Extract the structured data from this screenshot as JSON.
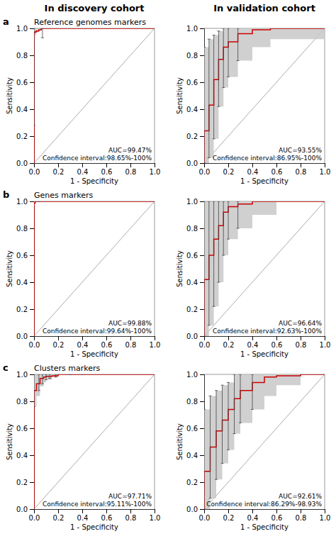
{
  "chart_data": [
    {
      "type": "step",
      "title": "In discovery cohort",
      "subtitle": "Reference genomes markers",
      "panel_label": "a",
      "x_label": "1 - Specificity",
      "y_label": "Sensitivity",
      "xlim": [
        0,
        1
      ],
      "ylim": [
        0,
        1
      ],
      "xticks": [
        {
          "value": 0,
          "label": "0.0"
        },
        0.2,
        0.4,
        0.6,
        0.8,
        {
          "value": 1,
          "label": "1.0"
        }
      ],
      "yticks": [
        {
          "value": 0,
          "label": "0.0"
        },
        0.2,
        0.4,
        0.6,
        0.8,
        {
          "value": 1,
          "label": "1.0"
        }
      ],
      "series": [
        {
          "type": "line",
          "color": "#aaaaaa",
          "x": [
            0,
            1
          ],
          "values": [
            0,
            1
          ]
        },
        {
          "type": "band",
          "color": "#c8c8c8",
          "x": [
            0.0,
            0.0,
            0.0,
            0.01,
            0.02,
            0.04,
            0.06,
            0.1,
            0.2,
            0.4,
            0.6,
            0.8,
            1.0
          ],
          "lower": [
            0.0,
            0.28,
            0.93,
            0.95,
            0.97,
            0.98,
            1.0,
            1.0,
            1.0,
            1.0,
            1.0,
            1.0,
            1.0
          ],
          "upper": [
            0.0,
            1.0,
            1.0,
            1.0,
            1.0,
            1.0,
            1.0,
            1.0,
            1.0,
            1.0,
            1.0,
            1.0,
            1.0
          ]
        },
        {
          "type": "step",
          "color": "#cc0000",
          "x": [
            0.0,
            0.0,
            0.0,
            0.01,
            0.02,
            0.04,
            0.06,
            0.1,
            0.2,
            0.4,
            0.6,
            0.8,
            1.0
          ],
          "values": [
            0.0,
            0.64,
            0.97,
            0.975,
            0.98,
            0.99,
            1.0,
            1.0,
            1.0,
            1.0,
            1.0,
            1.0,
            1.0
          ]
        },
        {
          "type": "error_bar",
          "color": "#444444",
          "x": [
            0.0,
            0.07
          ],
          "values": [
            0.64,
            0.975
          ],
          "upper": [
            1.0,
            1.0
          ],
          "lower": [
            0.28,
            0.93
          ]
        }
      ],
      "annotation": "AUC=99.47%\nConfidence interval:98.65%-100%"
    },
    {
      "type": "step",
      "title": "In validation cohort",
      "x_label": "1 - Specificity",
      "y_label": "Sensitivity",
      "xlim": [
        0,
        1
      ],
      "ylim": [
        0,
        1
      ],
      "xticks": [
        {
          "value": 0,
          "label": "0.0"
        },
        0.2,
        0.4,
        0.6,
        0.8,
        {
          "value": 1,
          "label": "1.0"
        }
      ],
      "yticks": [
        {
          "value": 0,
          "label": "0.0"
        },
        0.2,
        0.4,
        0.6,
        0.8,
        {
          "value": 1,
          "label": "1.0"
        }
      ],
      "series": [
        {
          "type": "line",
          "color": "#aaaaaa",
          "x": [
            0,
            1
          ],
          "values": [
            0,
            1
          ]
        },
        {
          "type": "band",
          "color": "#c8c8c8",
          "x": [
            0.0,
            0.0,
            0.04,
            0.08,
            0.12,
            0.16,
            0.2,
            0.28,
            0.4,
            0.55,
            1.0
          ],
          "lower": [
            0.0,
            0.0,
            0.04,
            0.18,
            0.42,
            0.56,
            0.64,
            0.76,
            0.86,
            0.92,
            1.0
          ],
          "upper": [
            0.0,
            0.86,
            0.92,
            0.95,
            0.98,
            1.0,
            1.0,
            1.0,
            1.0,
            1.0,
            1.0
          ]
        },
        {
          "type": "step",
          "color": "#cc0000",
          "x": [
            0.0,
            0.0,
            0.04,
            0.08,
            0.12,
            0.16,
            0.2,
            0.28,
            0.4,
            0.55,
            1.0
          ],
          "values": [
            0.0,
            0.24,
            0.43,
            0.62,
            0.77,
            0.86,
            0.9,
            0.96,
            0.99,
            1.0,
            1.0
          ]
        },
        {
          "type": "error_bar",
          "color": "#444444",
          "x": [
            0.0,
            0.04,
            0.08,
            0.12,
            0.16,
            0.2,
            0.28
          ],
          "values": [
            0.24,
            0.43,
            0.62,
            0.77,
            0.86,
            0.9,
            0.96
          ],
          "upper": [
            0.86,
            0.92,
            0.95,
            0.98,
            1.0,
            1.0,
            1.0
          ],
          "lower": [
            0.0,
            0.04,
            0.18,
            0.42,
            0.56,
            0.64,
            0.76
          ]
        }
      ],
      "annotation": "AUC=93.55%\nConfidence interval:86.95%-100%"
    },
    {
      "type": "step",
      "subtitle": "Genes markers",
      "panel_label": "b",
      "x_label": "1 - Specificity",
      "y_label": "Sensitivity",
      "xlim": [
        0,
        1
      ],
      "ylim": [
        0,
        1
      ],
      "xticks": [
        {
          "value": 0,
          "label": "0.0"
        },
        0.2,
        0.4,
        0.6,
        0.8,
        {
          "value": 1,
          "label": "1.0"
        }
      ],
      "yticks": [
        {
          "value": 0,
          "label": "0.0"
        },
        0.2,
        0.4,
        0.6,
        0.8,
        {
          "value": 1,
          "label": "1.0"
        }
      ],
      "series": [
        {
          "type": "line",
          "color": "#aaaaaa",
          "x": [
            0,
            1
          ],
          "values": [
            0,
            1
          ]
        },
        {
          "type": "band",
          "color": "#c8c8c8",
          "x": [
            0.0,
            0.0,
            0.005,
            0.01,
            0.02,
            0.04,
            0.1,
            0.2,
            0.4,
            0.6,
            0.8,
            1.0
          ],
          "lower": [
            0.0,
            0.97,
            0.98,
            1.0,
            1.0,
            1.0,
            1.0,
            1.0,
            1.0,
            1.0,
            1.0,
            1.0
          ],
          "upper": [
            0.0,
            1.0,
            1.0,
            1.0,
            1.0,
            1.0,
            1.0,
            1.0,
            1.0,
            1.0,
            1.0,
            1.0
          ]
        },
        {
          "type": "step",
          "color": "#cc0000",
          "x": [
            0.0,
            0.0,
            0.005,
            0.01,
            0.02,
            0.04,
            0.1,
            0.2,
            0.4,
            0.6,
            0.8,
            1.0
          ],
          "values": [
            0.0,
            0.985,
            0.99,
            1.0,
            1.0,
            1.0,
            1.0,
            1.0,
            1.0,
            1.0,
            1.0,
            1.0
          ]
        },
        {
          "type": "error_bar",
          "color": "#444444",
          "x": [
            0.04
          ],
          "values": [
            1.0
          ],
          "upper": [
            1.0
          ],
          "lower": [
            1.0
          ]
        }
      ],
      "annotation": "AUC=99.88%\nConfidence interval:99.64%-100%"
    },
    {
      "type": "step",
      "x_label": "1 - Specificity",
      "y_label": "Sensitivity",
      "xlim": [
        0,
        1
      ],
      "ylim": [
        0,
        1
      ],
      "xticks": [
        {
          "value": 0,
          "label": "0.0"
        },
        0.2,
        0.4,
        0.6,
        0.8,
        {
          "value": 1,
          "label": "1.0"
        }
      ],
      "yticks": [
        {
          "value": 0,
          "label": "0.0"
        },
        0.2,
        0.4,
        0.6,
        0.8,
        {
          "value": 1,
          "label": "1.0"
        }
      ],
      "series": [
        {
          "type": "line",
          "color": "#aaaaaa",
          "x": [
            0,
            1
          ],
          "values": [
            0,
            1
          ]
        },
        {
          "type": "band",
          "color": "#c8c8c8",
          "x": [
            0.0,
            0.0,
            0.04,
            0.08,
            0.12,
            0.16,
            0.2,
            0.28,
            0.4,
            0.6,
            0.8,
            1.0
          ],
          "lower": [
            0.0,
            0.0,
            0.08,
            0.22,
            0.4,
            0.6,
            0.72,
            0.8,
            0.9,
            1.0,
            1.0,
            1.0
          ],
          "upper": [
            0.0,
            1.0,
            1.0,
            1.0,
            1.0,
            1.0,
            1.0,
            1.0,
            1.0,
            1.0,
            1.0,
            1.0
          ]
        },
        {
          "type": "step",
          "color": "#cc0000",
          "x": [
            0.0,
            0.0,
            0.04,
            0.08,
            0.12,
            0.16,
            0.2,
            0.28,
            0.4,
            0.6,
            0.8,
            1.0
          ],
          "values": [
            0.0,
            0.42,
            0.6,
            0.72,
            0.82,
            0.92,
            0.96,
            0.98,
            1.0,
            1.0,
            1.0,
            1.0
          ]
        },
        {
          "type": "error_bar",
          "color": "#444444",
          "x": [
            0.0,
            0.04,
            0.08,
            0.12,
            0.16,
            0.2,
            0.28
          ],
          "values": [
            0.42,
            0.6,
            0.72,
            0.82,
            0.92,
            0.96,
            0.98
          ],
          "upper": [
            1.0,
            1.0,
            1.0,
            1.0,
            1.0,
            1.0,
            1.0
          ],
          "lower": [
            0.0,
            0.08,
            0.22,
            0.4,
            0.6,
            0.72,
            0.8
          ]
        }
      ],
      "annotation": "AUC=96.64%\nConfidence interval:92.63%-100%"
    },
    {
      "type": "step",
      "subtitle": "Clusters markers",
      "panel_label": "c",
      "x_label": "1 - Specificity",
      "y_label": "Sensitivity",
      "xlim": [
        0,
        1
      ],
      "ylim": [
        0,
        1
      ],
      "xticks": [
        {
          "value": 0,
          "label": "0.0"
        },
        0.2,
        0.4,
        0.6,
        0.8,
        {
          "value": 1,
          "label": "1.0"
        }
      ],
      "yticks": [
        {
          "value": 0,
          "label": "0.0"
        },
        0.2,
        0.4,
        0.6,
        0.8,
        {
          "value": 1,
          "label": "1.0"
        }
      ],
      "series": [
        {
          "type": "line",
          "color": "#aaaaaa",
          "x": [
            0,
            1
          ],
          "values": [
            0,
            1
          ]
        },
        {
          "type": "band",
          "color": "#c8c8c8",
          "x": [
            0.0,
            0.0,
            0.02,
            0.05,
            0.08,
            0.1,
            0.15,
            0.2,
            0.3,
            0.4,
            0.6,
            0.8,
            1.0
          ],
          "lower": [
            0.0,
            0.76,
            0.84,
            0.91,
            0.94,
            0.96,
            0.98,
            1.0,
            1.0,
            1.0,
            1.0,
            1.0,
            1.0
          ],
          "upper": [
            0.0,
            1.0,
            1.0,
            1.0,
            1.0,
            1.0,
            1.0,
            1.0,
            1.0,
            1.0,
            1.0,
            1.0,
            1.0
          ]
        },
        {
          "type": "step",
          "color": "#cc0000",
          "x": [
            0.0,
            0.0,
            0.02,
            0.05,
            0.08,
            0.1,
            0.15,
            0.2,
            0.3,
            0.4,
            0.6,
            0.8,
            1.0
          ],
          "values": [
            0.0,
            0.88,
            0.93,
            0.97,
            0.98,
            0.985,
            0.99,
            1.0,
            1.0,
            1.0,
            1.0,
            1.0,
            1.0
          ]
        },
        {
          "type": "error_bar",
          "color": "#444444",
          "x": [
            0.0,
            0.04,
            0.07,
            0.1,
            0.13,
            0.18,
            0.3,
            0.4
          ],
          "values": [
            0.88,
            0.95,
            0.97,
            0.985,
            0.99,
            0.99,
            1.0,
            1.0
          ],
          "upper": [
            1.0,
            1.0,
            1.0,
            1.0,
            1.0,
            1.0,
            1.0,
            1.0
          ],
          "lower": [
            0.76,
            0.88,
            0.93,
            0.96,
            0.97,
            0.98,
            1.0,
            1.0
          ]
        }
      ],
      "annotation": "AUC=97.71%\nConfidence interval:95.11%-100%"
    },
    {
      "type": "step",
      "x_label": "1 - Specificity",
      "y_label": "Sensitivity",
      "xlim": [
        0,
        1
      ],
      "ylim": [
        0,
        1
      ],
      "xticks": [
        {
          "value": 0,
          "label": "0.0"
        },
        0.2,
        0.4,
        0.6,
        0.8,
        {
          "value": 1,
          "label": "1.0"
        }
      ],
      "yticks": [
        {
          "value": 0,
          "label": "0.0"
        },
        0.2,
        0.4,
        0.6,
        0.8,
        {
          "value": 1,
          "label": "1.0"
        }
      ],
      "series": [
        {
          "type": "line",
          "color": "#aaaaaa",
          "x": [
            0,
            1
          ],
          "values": [
            0,
            1
          ]
        },
        {
          "type": "band",
          "color": "#c8c8c8",
          "x": [
            0.0,
            0.0,
            0.05,
            0.1,
            0.15,
            0.2,
            0.25,
            0.3,
            0.4,
            0.5,
            0.6,
            0.8,
            1.0
          ],
          "lower": [
            0.0,
            0.0,
            0.08,
            0.22,
            0.34,
            0.44,
            0.56,
            0.64,
            0.74,
            0.84,
            0.92,
            1.0,
            1.0
          ],
          "upper": [
            0.0,
            0.74,
            0.84,
            0.88,
            0.92,
            0.94,
            1.0,
            1.0,
            1.0,
            1.0,
            1.0,
            1.0,
            1.0
          ]
        },
        {
          "type": "step",
          "color": "#cc0000",
          "x": [
            0.0,
            0.0,
            0.05,
            0.1,
            0.15,
            0.2,
            0.25,
            0.3,
            0.4,
            0.5,
            0.6,
            0.8,
            1.0
          ],
          "values": [
            0.0,
            0.28,
            0.46,
            0.58,
            0.66,
            0.74,
            0.82,
            0.88,
            0.94,
            0.98,
            0.99,
            1.0,
            1.0
          ]
        },
        {
          "type": "error_bar",
          "color": "#444444",
          "x": [
            0.0,
            0.05,
            0.1,
            0.15,
            0.2,
            0.25,
            0.3,
            0.4
          ],
          "values": [
            0.28,
            0.46,
            0.58,
            0.66,
            0.74,
            0.82,
            0.88,
            0.94
          ],
          "upper": [
            0.74,
            0.84,
            0.88,
            0.92,
            0.94,
            1.0,
            1.0,
            1.0
          ],
          "lower": [
            0.0,
            0.08,
            0.22,
            0.34,
            0.44,
            0.56,
            0.64,
            0.74
          ]
        }
      ],
      "annotation": "AUC=92.61%\nConfidence interval:86.29%-98.93%"
    }
  ]
}
